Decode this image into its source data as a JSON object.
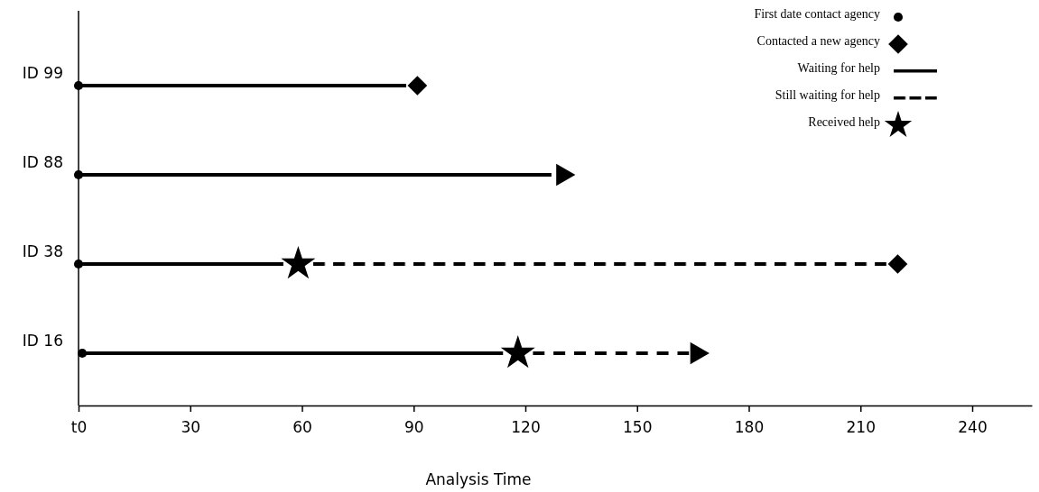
{
  "chart_data": {
    "type": "bar",
    "orientation": "horizontal",
    "xlabel": "Analysis Time",
    "xlim": [
      0,
      256
    ],
    "xticks": [
      {
        "value": 0,
        "label": "t0"
      },
      30,
      60,
      90,
      120,
      150,
      180,
      210,
      240
    ],
    "categories": [
      "ID 99",
      "ID 88",
      "ID 38",
      "ID 16"
    ],
    "grid": false,
    "legend": "top right",
    "series": [
      {
        "name": "First date contact agency",
        "type": "scatter",
        "marker": "circle",
        "color": "#000000",
        "values": [
          0,
          0,
          0,
          1
        ]
      },
      {
        "name": "Contacted a new agency",
        "type": "scatter",
        "marker": "diamond",
        "color": "#000000",
        "values": [
          91,
          null,
          220,
          null
        ]
      },
      {
        "name": "Waiting for help",
        "line_style": "solid",
        "color": "#000000",
        "base": [
          0,
          0,
          0,
          1
        ],
        "values": [
          88,
          127,
          55,
          113
        ]
      },
      {
        "name": "Still waiting for help",
        "line_style": "dashed",
        "color": "#000000",
        "base": [
          null,
          null,
          63,
          122
        ],
        "values": [
          null,
          null,
          154,
          42
        ]
      },
      {
        "name": "Received help",
        "type": "scatter",
        "marker": "star",
        "color": "#000000",
        "values": [
          null,
          null,
          59,
          118
        ]
      },
      {
        "type": "scatter",
        "marker": "triangle",
        "color": "#000000",
        "values": [
          null,
          130,
          null,
          166
        ]
      }
    ]
  }
}
